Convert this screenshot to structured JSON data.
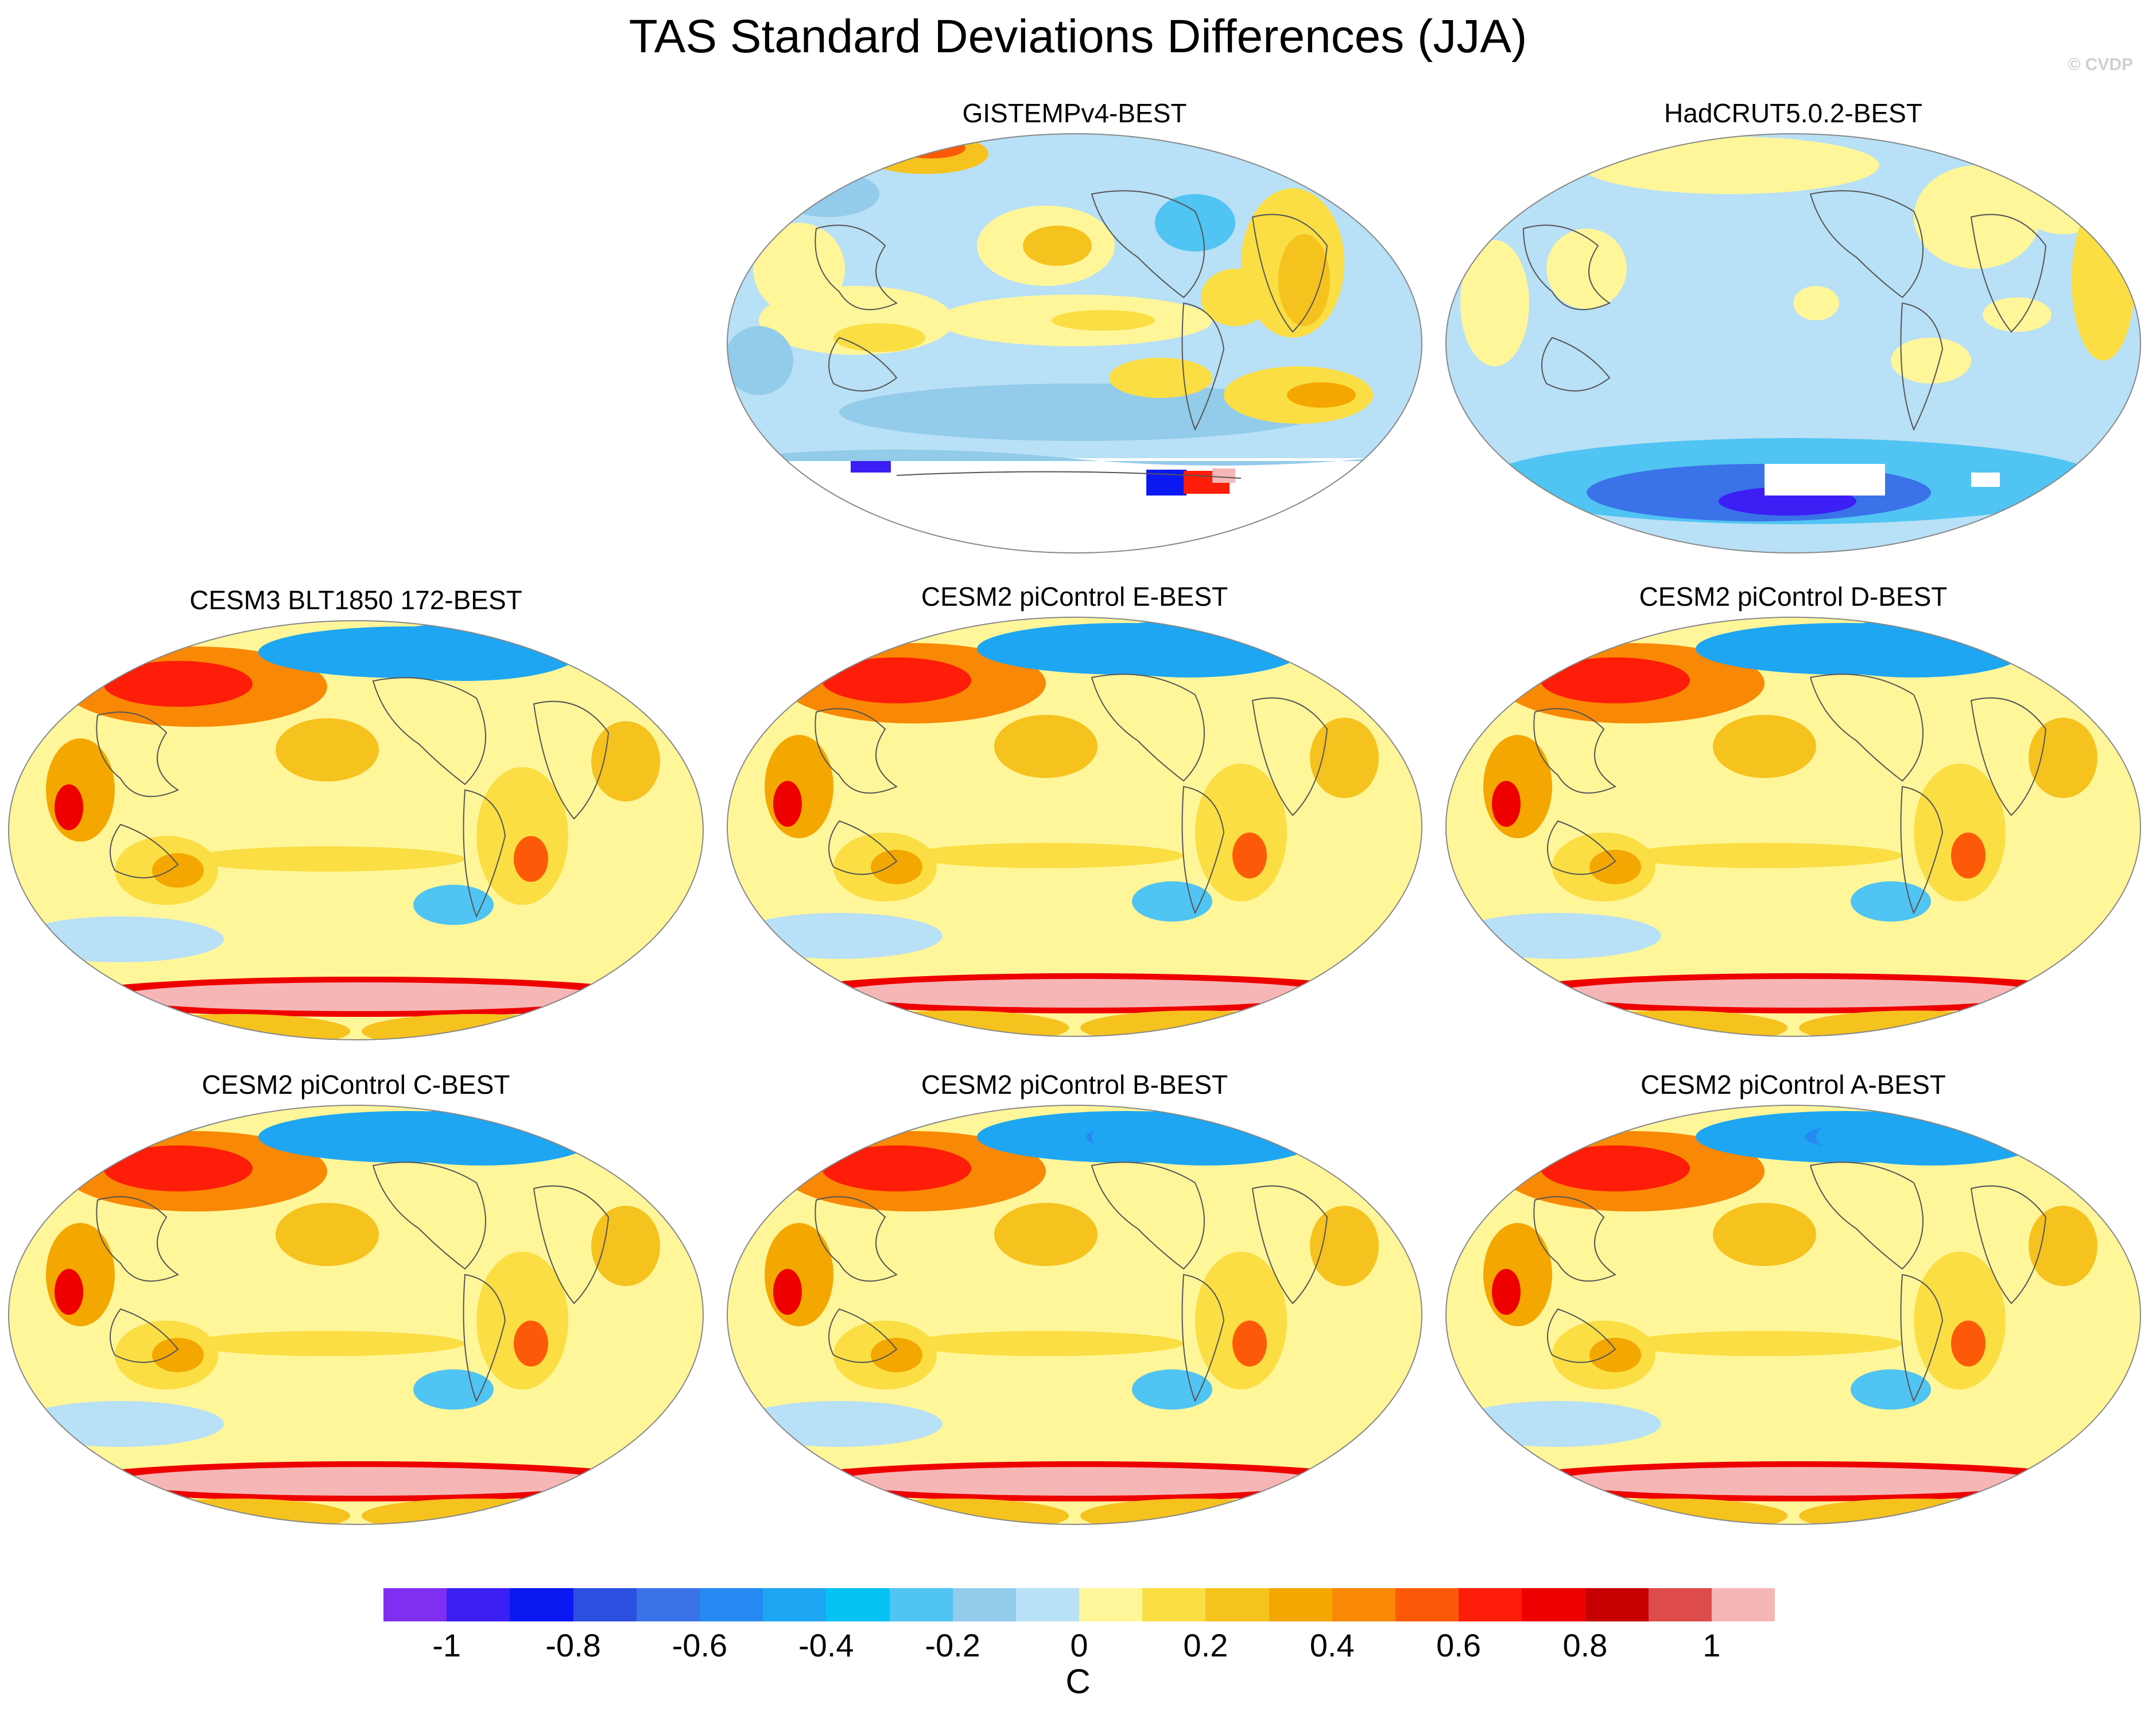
{
  "title": "TAS Standard Deviations Differences (JJA)",
  "credit": "© CVDP",
  "colors": {
    "levels": [
      "#7f2ff0",
      "#3b1ff5",
      "#0b18f2",
      "#2c4fe0",
      "#3a72e8",
      "#268af2",
      "#1ea6f2",
      "#05c2f5",
      "#50c4f2",
      "#93cbea",
      "#b8e0f6",
      "#fff69a",
      "#fbde43",
      "#f6c21e",
      "#f4a700",
      "#f98804",
      "#fc5a08",
      "#fd1d08",
      "#ee0000",
      "#c60000",
      "#de4b4b",
      "#f7b6b6"
    ],
    "land_outline": "#555555"
  },
  "panels": [
    {
      "title": "GISTEMPv4-BEST",
      "base": "gistemp"
    },
    {
      "title": "HadCRUT5.0.2-BEST",
      "base": "hadcrut"
    },
    {
      "title": "CESM3 BLT1850 172-BEST",
      "base": "model"
    },
    {
      "title": "CESM2 piControl E-BEST",
      "base": "model"
    },
    {
      "title": "CESM2 piControl D-BEST",
      "base": "model"
    },
    {
      "title": "CESM2 piControl C-BEST",
      "base": "model"
    },
    {
      "title": "CESM2 piControl B-BEST",
      "base": "model"
    },
    {
      "title": "CESM2 piControl A-BEST",
      "base": "model"
    }
  ],
  "colorbar": {
    "tick_labels": [
      "-1",
      "-0.8",
      "-0.6",
      "-0.4",
      "-0.2",
      "0",
      "0.2",
      "0.4",
      "0.6",
      "0.8",
      "1"
    ],
    "unit": "C"
  }
}
